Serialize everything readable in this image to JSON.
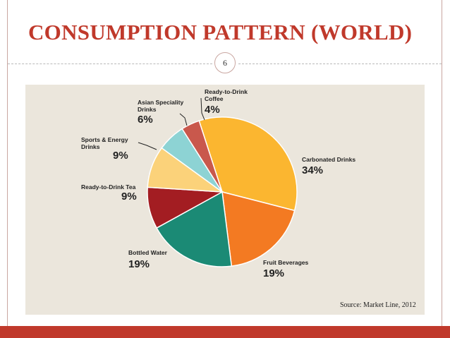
{
  "slide": {
    "title": "CONSUMPTION PATTERN (WORLD)",
    "page_number": "6",
    "source": "Source: Market Line, 2012"
  },
  "colors": {
    "title": "#c0392b",
    "footer": "#c0392b",
    "chart_bg": "#ebe6dc"
  },
  "chart_data": {
    "type": "pie",
    "title": "",
    "unit": "%",
    "slices": [
      {
        "label": "Carbonated Drinks",
        "label_lines": [
          "Carbonated Drinks"
        ],
        "value": 34,
        "display": "34%",
        "color": "#fbb630"
      },
      {
        "label": "Fruit Beverages",
        "label_lines": [
          "Fruit Beverages"
        ],
        "value": 19,
        "display": "19%",
        "color": "#f37a22"
      },
      {
        "label": "Bottled Water",
        "label_lines": [
          "Bottled Water"
        ],
        "value": 19,
        "display": "19%",
        "color": "#1b8a75"
      },
      {
        "label": "Ready-to-Drink Tea",
        "label_lines": [
          "Ready-to-Drink Tea"
        ],
        "value": 9,
        "display": "9%",
        "color": "#a31d22"
      },
      {
        "label": "Sports & Energy Drinks",
        "label_lines": [
          "Sports & Energy",
          "Drinks"
        ],
        "value": 9,
        "display": "9%",
        "color": "#fbd27a"
      },
      {
        "label": "Asian Speciality Drinks",
        "label_lines": [
          "Asian Speciality",
          "Drinks"
        ],
        "value": 6,
        "display": "6%",
        "color": "#8dd3d4"
      },
      {
        "label": "Ready-to-Drink Coffee",
        "label_lines": [
          "Ready-to-Drink",
          "Coffee"
        ],
        "value": 4,
        "display": "4%",
        "color": "#c9584c"
      }
    ]
  }
}
